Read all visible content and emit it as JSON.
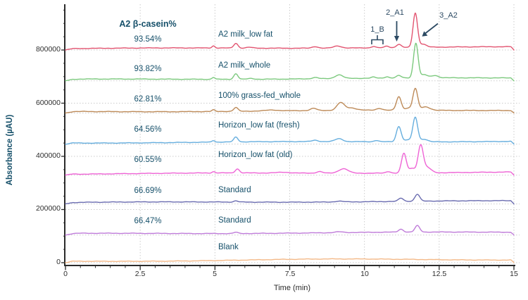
{
  "header": {
    "title": "A2 β-casein%"
  },
  "axes": {
    "x": {
      "label": "Time (min)",
      "min": 0,
      "max": 15,
      "major_tick_step": 2.5,
      "minor_tick_step": 0.5,
      "tick_labels": [
        "0",
        "2.5",
        "5",
        "7.5",
        "10",
        "12.5",
        "15"
      ]
    },
    "y": {
      "label": "Absorbance (µAU)",
      "min": 0,
      "max": 965000,
      "major_tick_step": 200000,
      "minor_tick_step": 50000,
      "tick_labels": [
        "0",
        "200000",
        "400000",
        "600000",
        "800000"
      ]
    }
  },
  "annotations": {
    "peak_b": "1_B",
    "peak_a1": "2_A1",
    "peak_a2": "3_A2"
  },
  "chart_data": {
    "type": "line",
    "title": "A2 β-casein%",
    "xlabel": "Time (min)",
    "ylabel": "Absorbance (µAU)",
    "xlim": [
      0,
      15
    ],
    "ylim": [
      0,
      965000
    ],
    "grid": "dotted",
    "grid_color": "#cbcbcb",
    "axis_color": "#2b2b2b",
    "annotation_color": "#2c4a63",
    "peak_annotations": [
      {
        "label": "1_B",
        "time": 10.4
      },
      {
        "label": "2_A1",
        "time": 11.15
      },
      {
        "label": "3_A2",
        "time": 11.7
      }
    ],
    "series": [
      {
        "name": "A2 milk_low fat",
        "a2_casein_percent": "93.54%",
        "color": "#e25571",
        "offset": 800000,
        "peaks": [
          [
            4.95,
            8000,
            0.05
          ],
          [
            5.7,
            18000,
            0.07
          ],
          [
            6.15,
            3000,
            0.1
          ],
          [
            8.35,
            6000,
            0.1
          ],
          [
            9.1,
            8000,
            0.13
          ],
          [
            10.3,
            5000,
            0.07
          ],
          [
            10.75,
            6000,
            0.07
          ],
          [
            11.15,
            12000,
            0.08
          ],
          [
            11.7,
            128000,
            0.075
          ],
          [
            11.95,
            12000,
            0.12
          ]
        ]
      },
      {
        "name": "A2 milk_whole",
        "a2_casein_percent": "93.82%",
        "color": "#7cc97e",
        "offset": 684000,
        "peaks": [
          [
            4.95,
            7000,
            0.05
          ],
          [
            5.7,
            21000,
            0.07
          ],
          [
            6.2,
            3000,
            0.1
          ],
          [
            8.35,
            5000,
            0.1
          ],
          [
            9.15,
            14000,
            0.13
          ],
          [
            10.3,
            4000,
            0.07
          ],
          [
            10.75,
            5000,
            0.07
          ],
          [
            11.15,
            9000,
            0.08
          ],
          [
            11.72,
            131000,
            0.075
          ],
          [
            12.0,
            12000,
            0.1
          ],
          [
            12.35,
            9000,
            0.12
          ]
        ]
      },
      {
        "name": "100% grass-fed_whole",
        "a2_casein_percent": "62.81%",
        "color": "#bd8a58",
        "offset": 563000,
        "peaks": [
          [
            4.95,
            6000,
            0.05
          ],
          [
            5.7,
            14000,
            0.07
          ],
          [
            6.9,
            3500,
            0.2
          ],
          [
            8.3,
            8000,
            0.1
          ],
          [
            9.2,
            28000,
            0.12
          ],
          [
            9.55,
            9000,
            0.18
          ],
          [
            10.5,
            7000,
            0.1
          ],
          [
            11.15,
            51000,
            0.08
          ],
          [
            11.45,
            8000,
            0.1
          ],
          [
            11.7,
            81000,
            0.08
          ],
          [
            12.05,
            13000,
            0.15
          ]
        ]
      },
      {
        "name": "Horizon_low fat (fresh)",
        "a2_casein_percent": "64.56%",
        "color": "#66aede",
        "offset": 446000,
        "peaks": [
          [
            4.95,
            6000,
            0.05
          ],
          [
            5.7,
            18000,
            0.07
          ],
          [
            8.35,
            5000,
            0.1
          ],
          [
            9.15,
            11000,
            0.13
          ],
          [
            10.4,
            5000,
            0.08
          ],
          [
            11.15,
            58000,
            0.08
          ],
          [
            11.45,
            7000,
            0.1
          ],
          [
            11.7,
            92000,
            0.08
          ],
          [
            12.0,
            10000,
            0.12
          ]
        ]
      },
      {
        "name": "Horizon_low fat (old)",
        "a2_casein_percent": "60.55%",
        "color": "#ee63d5",
        "offset": 329000,
        "peaks": [
          [
            4.95,
            5000,
            0.05
          ],
          [
            5.75,
            15000,
            0.07
          ],
          [
            7.3,
            3000,
            0.2
          ],
          [
            8.5,
            6000,
            0.1
          ],
          [
            9.3,
            17000,
            0.16
          ],
          [
            10.8,
            6000,
            0.08
          ],
          [
            11.32,
            74000,
            0.08
          ],
          [
            11.6,
            18000,
            0.1
          ],
          [
            11.88,
            102000,
            0.085
          ],
          [
            12.1,
            20000,
            0.13
          ]
        ]
      },
      {
        "name": "Standard",
        "a2_casein_percent": "66.69%",
        "color": "#6a6cb0",
        "offset": 221000,
        "peaks": [
          [
            5.7,
            4500,
            0.07
          ],
          [
            9.15,
            3000,
            0.13
          ],
          [
            11.22,
            12000,
            0.08
          ],
          [
            11.77,
            26000,
            0.08
          ]
        ]
      },
      {
        "name": "Standard",
        "a2_casein_percent": "66.47%",
        "color": "#bf7cd9",
        "offset": 104000,
        "peaks": [
          [
            5.7,
            4500,
            0.07
          ],
          [
            9.15,
            3000,
            0.13
          ],
          [
            11.22,
            11000,
            0.08
          ],
          [
            11.77,
            24000,
            0.08
          ]
        ]
      },
      {
        "name": "Blank",
        "color": "#f4b988",
        "offset": 0,
        "peaks": [
          [
            8.5,
            4000,
            3.0
          ]
        ]
      }
    ]
  }
}
